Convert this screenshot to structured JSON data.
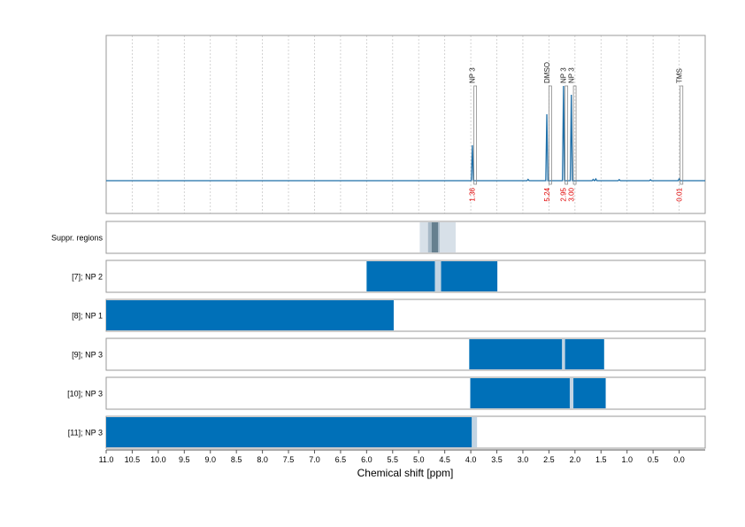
{
  "chart_data": {
    "type": "nmr-spectrum-with-region-tracks",
    "xlabel": "Chemical shift [ppm]",
    "xlim": [
      11.0,
      -0.5
    ],
    "x_ticks": [
      "11.0",
      "10.5",
      "10.0",
      "9.5",
      "9.0",
      "8.5",
      "8.0",
      "7.5",
      "7.0",
      "6.5",
      "6.0",
      "5.5",
      "5.0",
      "4.5",
      "4.0",
      "3.5",
      "3.0",
      "2.5",
      "2.0",
      "1.5",
      "1.0",
      "0.5",
      "0.0"
    ],
    "x_tick_values": [
      11.0,
      10.5,
      10.0,
      9.5,
      9.0,
      8.5,
      8.0,
      7.5,
      7.0,
      6.5,
      6.0,
      5.5,
      5.0,
      4.5,
      4.0,
      3.5,
      3.0,
      2.5,
      2.0,
      1.5,
      1.0,
      0.5,
      0.0
    ],
    "grid": true,
    "colors": {
      "spectrum": "#1f6fa8",
      "bar": "#0070b8",
      "suppression": "#c2d4e3",
      "suppr_region": "#d7e0e8",
      "suppr_mid": "#a7b9c7",
      "suppr_dark": "#66808f",
      "integral": "#e00000",
      "frame": "#9a9a9a"
    },
    "peaks": [
      {
        "label": "NP 3",
        "shift": 3.97,
        "height": 0.4,
        "box": [
          3.94,
          4.02
        ],
        "integral": "1.36"
      },
      {
        "label": "DMSO",
        "shift": 2.54,
        "height": 0.75,
        "box": [
          2.5,
          2.58
        ],
        "integral": "5.24"
      },
      {
        "label": "NP 3",
        "shift": 2.22,
        "height": 1.07,
        "box": [
          2.19,
          2.26
        ],
        "integral": "2.95"
      },
      {
        "label": "NP 3",
        "shift": 2.07,
        "height": 0.97,
        "box": [
          2.03,
          2.11
        ],
        "integral": "3.00"
      },
      {
        "label": "TMS",
        "shift": 0.0,
        "height": 0.02,
        "box": [
          -0.02,
          0.02
        ],
        "integral": "0.01"
      }
    ],
    "tracks": [
      {
        "label": "Suppr. regions",
        "type": "suppression",
        "outer": [
          4.98,
          4.29
        ],
        "mid": [
          4.82,
          4.6
        ],
        "inner": [
          4.75,
          4.63
        ]
      },
      {
        "label": "[7]; NP 2",
        "type": "bar",
        "bar": [
          6.0,
          3.49
        ],
        "suppressed": [
          4.69,
          4.57
        ]
      },
      {
        "label": "[8]; NP 1",
        "type": "bar",
        "bar": [
          11.0,
          5.48
        ],
        "suppressed": null
      },
      {
        "label": "[9]; NP 3",
        "type": "bar",
        "bar": [
          4.03,
          1.44
        ],
        "suppressed": [
          2.25,
          2.19
        ]
      },
      {
        "label": "[10]; NP 3",
        "type": "bar",
        "bar": [
          4.01,
          1.41
        ],
        "suppressed": [
          2.1,
          2.03
        ]
      },
      {
        "label": "[11]; NP 3",
        "type": "bar",
        "bar": [
          11.0,
          3.98
        ],
        "suppressed": [
          3.98,
          3.88
        ]
      }
    ]
  }
}
